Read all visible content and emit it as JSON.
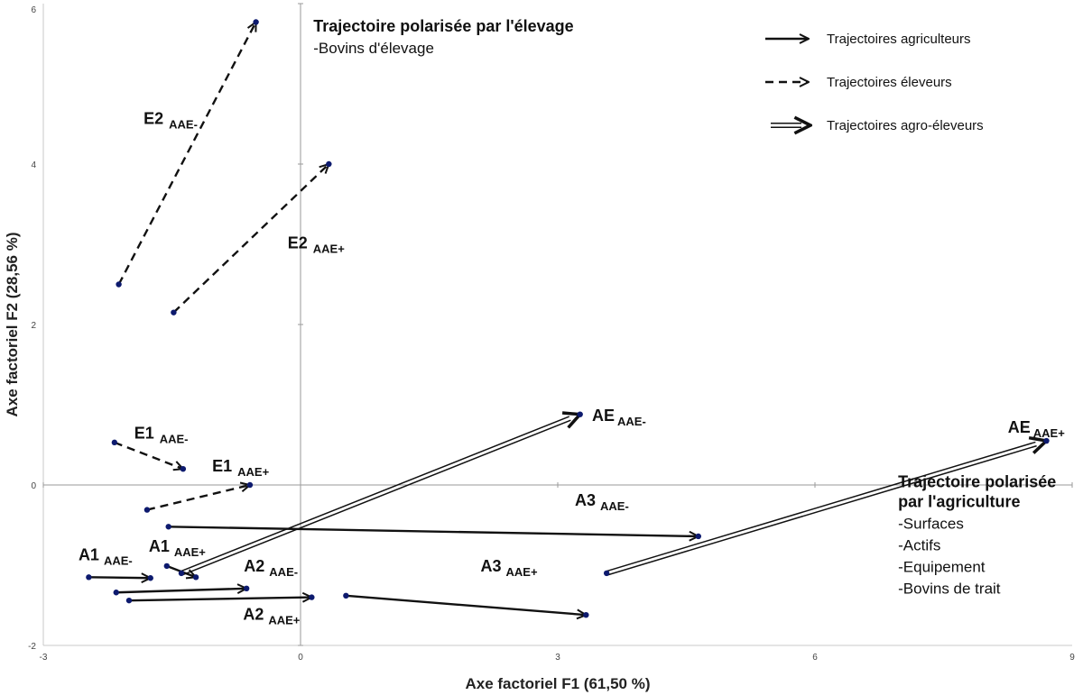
{
  "chart_data": {
    "type": "scatter",
    "xlabel": "Axe factoriel F1 (61,50 %)",
    "ylabel": "Axe factoriel F2 (28,56 %)",
    "xlim": [
      -3,
      9
    ],
    "ylim": [
      -2,
      6
    ],
    "xticks": [
      -3,
      0,
      3,
      6,
      9
    ],
    "yticks": [
      -2,
      0,
      2,
      4,
      6
    ],
    "grid": false,
    "legend_position": "top-right",
    "legend": [
      {
        "style": "solid",
        "label": "Trajectoires agriculteurs"
      },
      {
        "style": "dashed",
        "label": "Trajectoires éleveurs"
      },
      {
        "style": "double",
        "label": "Trajectoires agro-éleveurs"
      }
    ],
    "points": [
      {
        "x": -2.12,
        "y": 2.5
      },
      {
        "x": -0.52,
        "y": 5.77
      },
      {
        "x": -1.48,
        "y": 2.15
      },
      {
        "x": 0.33,
        "y": 4.0
      },
      {
        "x": -2.17,
        "y": 0.53
      },
      {
        "x": -1.37,
        "y": 0.2
      },
      {
        "x": -1.79,
        "y": -0.31
      },
      {
        "x": -0.59,
        "y": 0.0
      },
      {
        "x": -1.54,
        "y": -0.52
      },
      {
        "x": 4.64,
        "y": -0.64
      },
      {
        "x": -2.47,
        "y": -1.15
      },
      {
        "x": -1.75,
        "y": -1.16
      },
      {
        "x": -1.56,
        "y": -1.01
      },
      {
        "x": -1.22,
        "y": -1.15
      },
      {
        "x": -2.15,
        "y": -1.34
      },
      {
        "x": -0.63,
        "y": -1.29
      },
      {
        "x": -2.0,
        "y": -1.44
      },
      {
        "x": 0.13,
        "y": -1.4
      },
      {
        "x": 0.53,
        "y": -1.38
      },
      {
        "x": 3.33,
        "y": -1.62
      },
      {
        "x": -1.39,
        "y": -1.1
      },
      {
        "x": 3.26,
        "y": 0.88
      },
      {
        "x": 3.57,
        "y": -1.1
      },
      {
        "x": 8.7,
        "y": 0.55
      }
    ],
    "trajectories": [
      {
        "style": "dashed",
        "from": [
          -2.12,
          2.5
        ],
        "to": [
          -0.52,
          5.77
        ]
      },
      {
        "style": "dashed",
        "from": [
          -1.48,
          2.15
        ],
        "to": [
          0.33,
          4.0
        ]
      },
      {
        "style": "dashed",
        "from": [
          -2.17,
          0.53
        ],
        "to": [
          -1.37,
          0.2
        ]
      },
      {
        "style": "dashed",
        "from": [
          -1.79,
          -0.31
        ],
        "to": [
          -0.59,
          0.0
        ]
      },
      {
        "style": "solid",
        "from": [
          -1.54,
          -0.52
        ],
        "to": [
          4.64,
          -0.64
        ]
      },
      {
        "style": "solid",
        "from": [
          -2.47,
          -1.15
        ],
        "to": [
          -1.75,
          -1.16
        ]
      },
      {
        "style": "solid",
        "from": [
          -1.56,
          -1.01
        ],
        "to": [
          -1.22,
          -1.15
        ]
      },
      {
        "style": "solid",
        "from": [
          -2.15,
          -1.34
        ],
        "to": [
          -0.63,
          -1.29
        ]
      },
      {
        "style": "solid",
        "from": [
          -2.0,
          -1.44
        ],
        "to": [
          0.13,
          -1.4
        ]
      },
      {
        "style": "solid",
        "from": [
          0.53,
          -1.38
        ],
        "to": [
          3.33,
          -1.62
        ]
      },
      {
        "style": "double",
        "from": [
          -1.39,
          -1.1
        ],
        "to": [
          3.26,
          0.88
        ]
      },
      {
        "style": "double",
        "from": [
          3.57,
          -1.1
        ],
        "to": [
          8.7,
          0.55
        ]
      }
    ],
    "point_labels": [
      {
        "main": "E2",
        "sub": "AAE-",
        "x": -1.83,
        "y": 4.5
      },
      {
        "main": "E2",
        "sub": "AAE+",
        "x": -0.15,
        "y": 2.95
      },
      {
        "main": "E1",
        "sub": "AAE-",
        "x": -1.94,
        "y": 0.58
      },
      {
        "main": "E1",
        "sub": "AAE+",
        "x": -1.03,
        "y": 0.17
      },
      {
        "main": "A1",
        "sub": "AAE-",
        "x": -2.59,
        "y": -0.94
      },
      {
        "main": "A1",
        "sub": "AAE+",
        "x": -1.77,
        "y": -0.83
      },
      {
        "main": "A2",
        "sub": "AAE-",
        "x": -0.66,
        "y": -1.08
      },
      {
        "main": "A2",
        "sub": "AAE+",
        "x": -0.67,
        "y": -1.68
      },
      {
        "main": "A3",
        "sub": "AAE-",
        "x": 3.2,
        "y": -0.26
      },
      {
        "main": "A3",
        "sub": "AAE+",
        "x": 2.1,
        "y": -1.08
      },
      {
        "main": "AE",
        "sub": "AAE-",
        "x": 3.4,
        "y": 0.8
      },
      {
        "main": "AE",
        "sub": "AAE+",
        "x": 8.25,
        "y": 0.65
      }
    ],
    "annotations": [
      {
        "title": [
          "Trajectoire polarisée par l'élevage"
        ],
        "items": [
          "-Bovins d'élevage"
        ],
        "x": 0.15,
        "y": 5.65
      },
      {
        "title": [
          "Trajectoire polarisée",
          "par l'agriculture"
        ],
        "items": [
          "-Surfaces",
          "-Actifs",
          "-Equipement",
          "-Bovins de trait"
        ],
        "x": 6.97,
        "y": -0.03
      }
    ]
  }
}
